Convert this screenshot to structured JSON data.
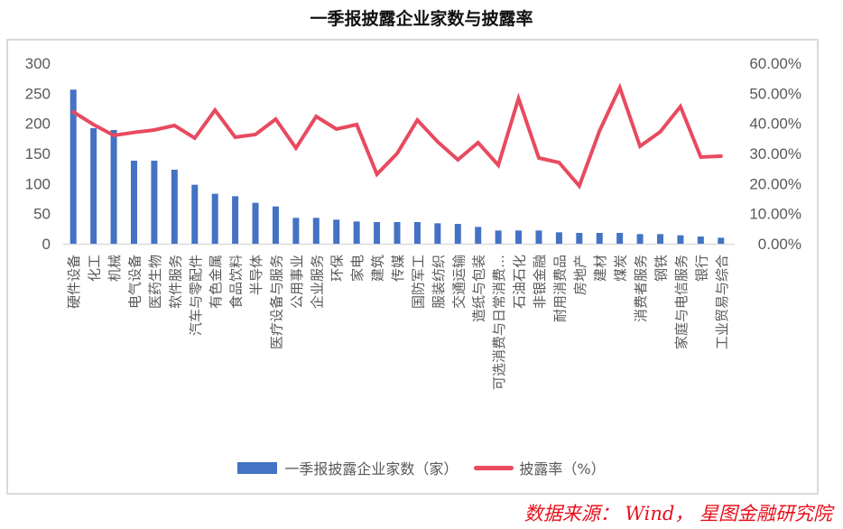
{
  "title": "一季报披露企业家数与披露率",
  "source": "数据来源： Wind， 星图金融研究院",
  "legend": {
    "bar_label": "一季报披露企业家数（家）",
    "line_label": "披露率（%）"
  },
  "colors": {
    "bar": "#4472c4",
    "line": "#e84a5f",
    "axis_text": "#595959",
    "source_text": "#e8101c"
  },
  "chart_data": {
    "type": "bar+line",
    "title": "一季报披露企业家数与披露率",
    "categories": [
      "硬件设备",
      "化工",
      "机械",
      "电气设备",
      "医药生物",
      "软件服务",
      "汽车与零配件",
      "有色金属",
      "食品饮料",
      "半导体",
      "医疗设备与服务",
      "公用事业",
      "企业服务",
      "环保",
      "家电",
      "建筑",
      "传媒",
      "国防军工",
      "服装纺织",
      "交通运输",
      "造纸与包装",
      "可选消费与日常消费…",
      "石油石化",
      "非银金融",
      "耐用消费品",
      "房地产",
      "建材",
      "煤炭",
      "消费者服务",
      "钢铁",
      "家庭与电信服务",
      "银行",
      "工业贸易与综合"
    ],
    "series": [
      {
        "name": "一季报披露企业家数（家）",
        "type": "bar",
        "axis": "left",
        "values": [
          256,
          192,
          189,
          138,
          138,
          123,
          98,
          83,
          79,
          68,
          62,
          43,
          43,
          40,
          37,
          36,
          36,
          36,
          34,
          33,
          28,
          22,
          22,
          22,
          19,
          18,
          18,
          18,
          16,
          16,
          14,
          12,
          10
        ]
      },
      {
        "name": "披露率（%）",
        "type": "line",
        "axis": "right",
        "values": [
          43.8,
          39.6,
          36.0,
          37.0,
          37.8,
          39.3,
          35.1,
          44.4,
          35.4,
          36.3,
          41.4,
          31.8,
          42.3,
          38.1,
          39.6,
          23.1,
          30.0,
          41.1,
          33.9,
          27.9,
          33.6,
          26.1,
          48.3,
          28.5,
          27.0,
          19.2,
          37.5,
          51.9,
          32.4,
          37.2,
          45.6,
          28.8,
          29.1
        ]
      }
    ],
    "y_left": {
      "ticks": [
        "0",
        "50",
        "100",
        "150",
        "200",
        "250",
        "300"
      ],
      "ylim": [
        0,
        300
      ]
    },
    "y_right": {
      "ticks": [
        "0.00%",
        "10.00%",
        "20.00%",
        "30.00%",
        "40.00%",
        "50.00%",
        "60.00%"
      ],
      "ylim": [
        0,
        60
      ]
    },
    "xlabel": "",
    "ylabel": "",
    "grid": false,
    "legend_position": "bottom"
  }
}
